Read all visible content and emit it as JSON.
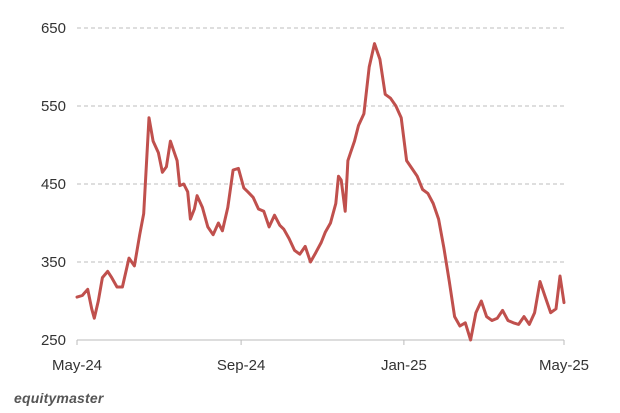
{
  "chart_data": {
    "type": "line",
    "title": "",
    "xlabel": "",
    "ylabel": "",
    "ylim": [
      250,
      650
    ],
    "y_ticks": [
      "650",
      "550",
      "450",
      "350",
      "250"
    ],
    "y_tick_values": [
      650,
      550,
      450,
      350,
      250
    ],
    "x_ticks": [
      "May-24",
      "Sep-24",
      "Jan-25",
      "May-25"
    ],
    "x_tick_dates": [
      "2024-05-01",
      "2024-09-01",
      "2025-01-01",
      "2025-05-01"
    ],
    "grid": "horizontal-dashed",
    "legend": "none",
    "line_color": "#c0504d",
    "series": [
      {
        "x": [
          "2024-05-01",
          "2024-05-05",
          "2024-05-09",
          "2024-05-12",
          "2024-05-14",
          "2024-05-17",
          "2024-05-20",
          "2024-05-24",
          "2024-05-27",
          "2024-05-31",
          "2024-06-04",
          "2024-06-09",
          "2024-06-13",
          "2024-06-17",
          "2024-06-20",
          "2024-06-24",
          "2024-06-27",
          "2024-07-01",
          "2024-07-04",
          "2024-07-07",
          "2024-07-10",
          "2024-07-13",
          "2024-07-15",
          "2024-07-17",
          "2024-07-20",
          "2024-07-23",
          "2024-07-25",
          "2024-07-28",
          "2024-07-30",
          "2024-08-03",
          "2024-08-07",
          "2024-08-11",
          "2024-08-15",
          "2024-08-18",
          "2024-08-22",
          "2024-08-26",
          "2024-08-30",
          "2024-09-03",
          "2024-09-06",
          "2024-09-10",
          "2024-09-14",
          "2024-09-18",
          "2024-09-22",
          "2024-09-26",
          "2024-09-30",
          "2024-10-03",
          "2024-10-07",
          "2024-10-11",
          "2024-10-15",
          "2024-10-19",
          "2024-10-23",
          "2024-10-27",
          "2024-10-31",
          "2024-11-03",
          "2024-11-07",
          "2024-11-11",
          "2024-11-13",
          "2024-11-15",
          "2024-11-18",
          "2024-11-20",
          "2024-11-22",
          "2024-11-25",
          "2024-11-28",
          "2024-12-02",
          "2024-12-06",
          "2024-12-10",
          "2024-12-14",
          "2024-12-18",
          "2024-12-22",
          "2024-12-26",
          "2024-12-30",
          "2025-01-03",
          "2025-01-07",
          "2025-01-11",
          "2025-01-15",
          "2025-01-19",
          "2025-01-23",
          "2025-01-27",
          "2025-01-31",
          "2025-02-04",
          "2025-02-08",
          "2025-02-12",
          "2025-02-16",
          "2025-02-20",
          "2025-02-24",
          "2025-02-28",
          "2025-03-04",
          "2025-03-08",
          "2025-03-12",
          "2025-03-16",
          "2025-03-20",
          "2025-03-24",
          "2025-03-28",
          "2025-04-01",
          "2025-04-05",
          "2025-04-09",
          "2025-04-13",
          "2025-04-17",
          "2025-04-21",
          "2025-04-25",
          "2025-04-28",
          "2025-05-01"
        ],
        "values": [
          305,
          307,
          315,
          290,
          278,
          300,
          330,
          338,
          330,
          318,
          318,
          355,
          345,
          385,
          412,
          535,
          505,
          490,
          465,
          472,
          505,
          490,
          480,
          448,
          450,
          440,
          405,
          418,
          435,
          420,
          395,
          385,
          400,
          390,
          420,
          468,
          470,
          445,
          440,
          433,
          418,
          415,
          395,
          410,
          397,
          392,
          380,
          365,
          360,
          370,
          350,
          362,
          375,
          388,
          400,
          425,
          460,
          455,
          415,
          480,
          490,
          505,
          525,
          540,
          600,
          630,
          610,
          565,
          560,
          550,
          535,
          480,
          470,
          460,
          443,
          438,
          425,
          405,
          368,
          325,
          280,
          268,
          272,
          250,
          285,
          300,
          280,
          275,
          278,
          288,
          275,
          272,
          270,
          280,
          270,
          285,
          325,
          305,
          285,
          290,
          332,
          298
        ]
      }
    ]
  },
  "watermark": "equitymaster"
}
